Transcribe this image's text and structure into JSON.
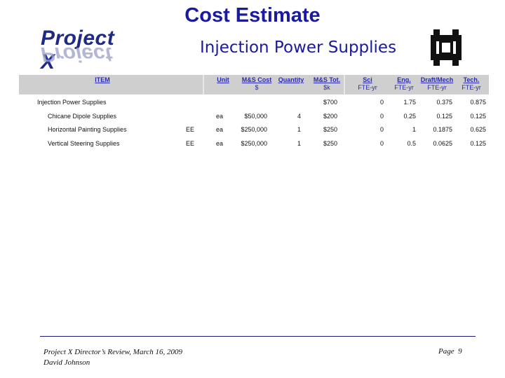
{
  "title": "Cost Estimate",
  "subtitle": "Injection Power Supplies",
  "logo_text": "Project X",
  "table": {
    "headers": {
      "item": "ITEM",
      "unit": "Unit",
      "ms_cost": "M&S Cost",
      "ms_cost_unit": "$",
      "quantity": "Quantity",
      "ms_tot": "M&S Tot.",
      "ms_tot_unit": "$k",
      "sci": "Sci",
      "sci_unit": "FTE-yr",
      "eng": "Eng.",
      "eng_unit": "FTE-yr",
      "draft": "Draft/Mech",
      "draft_unit": "FTE-yr",
      "tech": "Tech.",
      "tech_unit": "FTE-yr"
    },
    "rows": [
      {
        "item": "Injection Power Supplies",
        "dept": "",
        "unit": "",
        "ms_cost": "",
        "quantity": "",
        "ms_tot": "$700",
        "sci": "0",
        "eng": "1.75",
        "draft": "0.375",
        "tech": "0.875"
      },
      {
        "item": "Chicane Dipole Supplies",
        "dept": "",
        "unit": "ea",
        "ms_cost": "$50,000",
        "quantity": "4",
        "ms_tot": "$200",
        "sci": "0",
        "eng": "0.25",
        "draft": "0.125",
        "tech": "0.125"
      },
      {
        "item": "Horizontal Painting Supplies",
        "dept": "EE",
        "unit": "ea",
        "ms_cost": "$250,000",
        "quantity": "1",
        "ms_tot": "$250",
        "sci": "0",
        "eng": "1",
        "draft": "0.1875",
        "tech": "0.625"
      },
      {
        "item": "Vertical Steering Supplies",
        "dept": "EE",
        "unit": "ea",
        "ms_cost": "$250,000",
        "quantity": "1",
        "ms_tot": "$250",
        "sci": "0",
        "eng": "0.5",
        "draft": "0.0625",
        "tech": "0.125"
      }
    ]
  },
  "footer": {
    "line1": "Project X Director’s Review, March 16, 2009",
    "line2": "David Johnson",
    "page_label": "Page",
    "page_number": "9"
  },
  "colors": {
    "title": "#1a1aa0",
    "header_bg": "#cfcfcf",
    "header_text": "#2a2ab0"
  }
}
